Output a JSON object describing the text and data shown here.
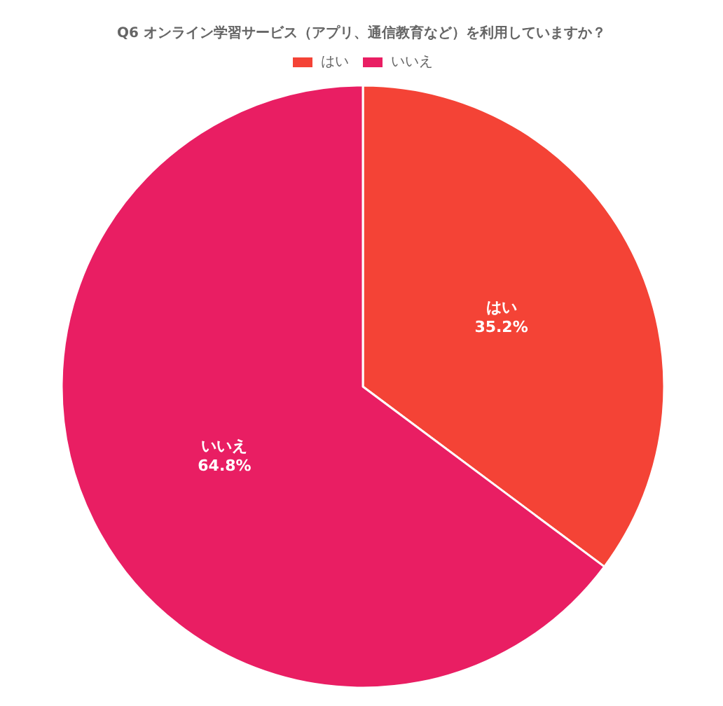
{
  "chart_data": {
    "type": "pie",
    "title": "Q6 オンライン学習サービス（アプリ、通信教育など）を利用していますか？",
    "categories": [
      "はい",
      "いいえ"
    ],
    "values": [
      35.2,
      64.8
    ],
    "colors": [
      "#f44336",
      "#e91e63"
    ],
    "value_labels": [
      "35.2%",
      "64.8%"
    ],
    "legend": "top"
  }
}
